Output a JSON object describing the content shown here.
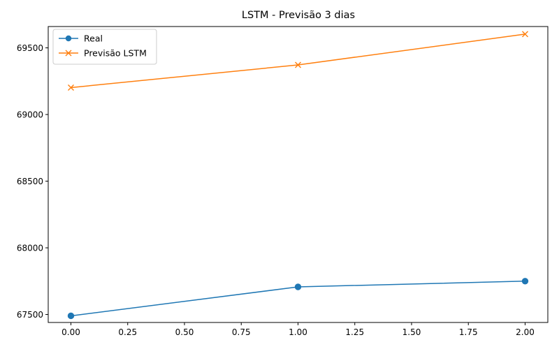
{
  "chart_data": {
    "type": "line",
    "title": "LSTM - Previsão 3 dias",
    "xlabel": "",
    "ylabel": "",
    "x": [
      0,
      1,
      2
    ],
    "xlim": [
      -0.1,
      2.1
    ],
    "ylim": [
      67440,
      69660
    ],
    "xticks": [
      0.0,
      0.25,
      0.5,
      0.75,
      1.0,
      1.25,
      1.5,
      1.75,
      2.0
    ],
    "xtick_labels": [
      "0.00",
      "0.25",
      "0.50",
      "0.75",
      "1.00",
      "1.25",
      "1.50",
      "1.75",
      "2.00"
    ],
    "yticks": [
      67500,
      68000,
      68500,
      69000,
      69500
    ],
    "ytick_labels": [
      "67500",
      "68000",
      "68500",
      "69000",
      "69500"
    ],
    "grid": false,
    "legend_position": "top-left",
    "series": [
      {
        "name": "Real",
        "values": [
          67490,
          67707,
          67750
        ],
        "color": "#1f77b4",
        "marker": "circle"
      },
      {
        "name": "Previsão LSTM",
        "values": [
          69202,
          69372,
          69603
        ],
        "color": "#ff7f0e",
        "marker": "x"
      }
    ]
  }
}
